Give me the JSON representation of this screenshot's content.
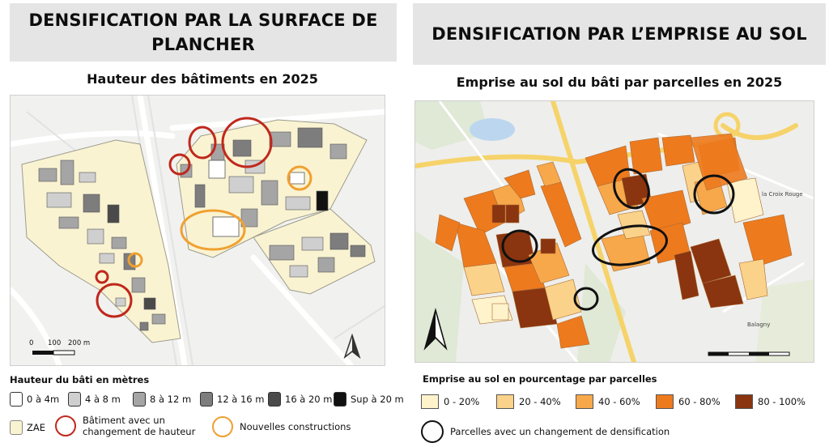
{
  "left": {
    "banner": "DENSIFICATION PAR LA SURFACE DE PLANCHER",
    "subtitle": "Hauteur des bâtiments en 2025",
    "scale_labels": [
      "0",
      "100",
      "200 m"
    ],
    "legend": {
      "title": "Hauteur du bâti en mètres",
      "height_classes": [
        {
          "label": "0 à 4m",
          "color": "#ffffff"
        },
        {
          "label": "4 à 8 m",
          "color": "#cfcfcf"
        },
        {
          "label": "8 à 12 m",
          "color": "#a5a5a5"
        },
        {
          "label": "12 à 16 m",
          "color": "#7d7d7d"
        },
        {
          "label": "16 à 20 m",
          "color": "#4a4a4a"
        },
        {
          "label": "Sup à 20 m",
          "color": "#111111"
        }
      ],
      "zae": {
        "label": "ZAE",
        "color": "#faf3d2"
      },
      "height_change": {
        "label_line1": "Bâtiment avec un",
        "label_line2": "changement de hauteur",
        "color": "#c0281c"
      },
      "new_construction": {
        "label": "Nouvelles constructions",
        "color": "#f0a030"
      }
    }
  },
  "right": {
    "banner": "DENSIFICATION PAR L’EMPRISE AU SOL",
    "subtitle": "Emprise au sol du bâti par parcelles en 2025",
    "place_labels": [
      "la Croix Rouge",
      "Balagny"
    ],
    "legend": {
      "title": "Emprise au sol en pourcentage par parcelles",
      "classes": [
        {
          "label": "0 - 20%",
          "color": "#fff3cc"
        },
        {
          "label": "20 - 40%",
          "color": "#fbd28a"
        },
        {
          "label": "40 - 60%",
          "color": "#f7a84a"
        },
        {
          "label": "60 - 80%",
          "color": "#ee7a1e"
        },
        {
          "label": "80 - 100%",
          "color": "#8a3410"
        }
      ],
      "change": {
        "label": "Parcelles avec un changement de densification",
        "color": "#111111"
      }
    }
  }
}
